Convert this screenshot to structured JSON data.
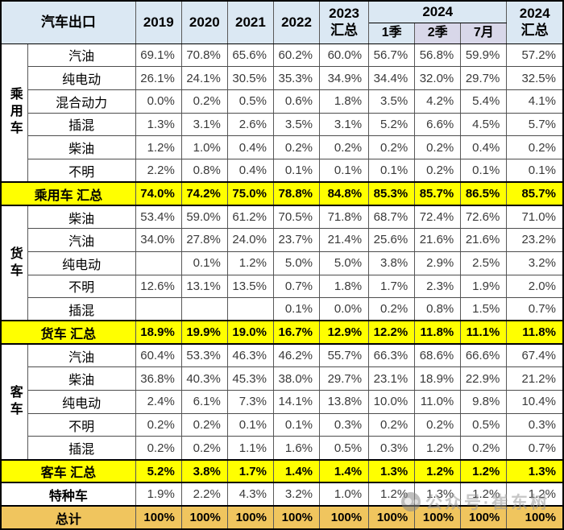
{
  "header": {
    "title": "汽车出口",
    "years": [
      "2019",
      "2020",
      "2021",
      "2022"
    ],
    "col2023": {
      "l1": "2023",
      "l2": "汇总"
    },
    "group2024": "2024",
    "sub2024": [
      "1季",
      "2季",
      "7月"
    ],
    "col2024total": {
      "l1": "2024",
      "l2": "汇总"
    }
  },
  "sections": [
    {
      "group": "乘用车",
      "rows": [
        {
          "label": "汽油",
          "values": [
            "69.1%",
            "70.8%",
            "65.6%",
            "60.2%",
            "60.0%",
            "56.7%",
            "56.8%",
            "59.9%",
            "57.2%"
          ]
        },
        {
          "label": "纯电动",
          "values": [
            "26.1%",
            "24.1%",
            "30.5%",
            "35.3%",
            "34.9%",
            "34.4%",
            "32.0%",
            "29.7%",
            "32.5%"
          ]
        },
        {
          "label": "混合动力",
          "values": [
            "0.0%",
            "0.2%",
            "0.5%",
            "0.6%",
            "1.8%",
            "3.5%",
            "4.2%",
            "5.4%",
            "4.1%"
          ]
        },
        {
          "label": "插混",
          "values": [
            "1.3%",
            "3.1%",
            "2.6%",
            "3.5%",
            "3.1%",
            "5.2%",
            "6.6%",
            "4.5%",
            "5.7%"
          ]
        },
        {
          "label": "柴油",
          "values": [
            "1.2%",
            "1.0%",
            "0.4%",
            "0.2%",
            "0.2%",
            "0.2%",
            "0.2%",
            "0.4%",
            "0.2%"
          ]
        },
        {
          "label": "不明",
          "values": [
            "2.2%",
            "0.8%",
            "0.4%",
            "0.1%",
            "0.1%",
            "0.1%",
            "0.2%",
            "0.1%",
            "0.1%"
          ]
        }
      ],
      "summary": {
        "label": "乘用车 汇总",
        "values": [
          "74.0%",
          "74.2%",
          "75.0%",
          "78.8%",
          "84.8%",
          "85.3%",
          "85.7%",
          "86.5%",
          "85.7%"
        ]
      }
    },
    {
      "group": "货车",
      "rows": [
        {
          "label": "柴油",
          "values": [
            "53.4%",
            "59.0%",
            "61.2%",
            "70.5%",
            "71.8%",
            "68.7%",
            "72.4%",
            "72.6%",
            "71.0%"
          ]
        },
        {
          "label": "汽油",
          "values": [
            "34.0%",
            "27.8%",
            "24.0%",
            "23.7%",
            "21.4%",
            "25.6%",
            "21.6%",
            "21.6%",
            "23.2%"
          ]
        },
        {
          "label": "纯电动",
          "values": [
            "",
            "0.1%",
            "1.2%",
            "5.0%",
            "5.0%",
            "3.8%",
            "2.9%",
            "2.5%",
            "3.2%"
          ]
        },
        {
          "label": "不明",
          "values": [
            "12.6%",
            "13.1%",
            "13.5%",
            "0.7%",
            "1.8%",
            "1.7%",
            "2.3%",
            "1.9%",
            "2.0%"
          ]
        },
        {
          "label": "插混",
          "values": [
            "",
            "",
            "",
            "0.1%",
            "0.0%",
            "0.2%",
            "0.8%",
            "1.5%",
            "0.7%"
          ]
        }
      ],
      "summary": {
        "label": "货车 汇总",
        "values": [
          "18.9%",
          "19.9%",
          "19.0%",
          "16.7%",
          "12.9%",
          "12.2%",
          "11.8%",
          "11.1%",
          "11.8%"
        ]
      }
    },
    {
      "group": "客车",
      "rows": [
        {
          "label": "汽油",
          "values": [
            "60.4%",
            "53.3%",
            "46.3%",
            "46.2%",
            "55.7%",
            "66.3%",
            "68.6%",
            "66.6%",
            "67.4%"
          ]
        },
        {
          "label": "柴油",
          "values": [
            "36.8%",
            "40.3%",
            "45.3%",
            "38.0%",
            "29.7%",
            "23.1%",
            "18.9%",
            "22.9%",
            "21.2%"
          ]
        },
        {
          "label": "纯电动",
          "values": [
            "2.4%",
            "6.1%",
            "7.3%",
            "14.1%",
            "13.8%",
            "10.0%",
            "11.0%",
            "9.8%",
            "10.4%"
          ]
        },
        {
          "label": "不明",
          "values": [
            "0.2%",
            "0.2%",
            "0.1%",
            "0.1%",
            "0.3%",
            "0.2%",
            "0.2%",
            "0.5%",
            "0.3%"
          ]
        },
        {
          "label": "插混",
          "values": [
            "0.2%",
            "0.2%",
            "1.1%",
            "1.6%",
            "0.5%",
            "0.3%",
            "1.2%",
            "0.2%",
            "0.7%"
          ]
        }
      ],
      "summary": {
        "label": "客车 汇总",
        "values": [
          "5.2%",
          "3.8%",
          "1.7%",
          "1.4%",
          "1.4%",
          "1.3%",
          "1.2%",
          "1.2%",
          "1.3%"
        ]
      }
    }
  ],
  "special_row": {
    "label": "特种车",
    "values": [
      "1.9%",
      "2.2%",
      "4.3%",
      "3.2%",
      "1.0%",
      "1.2%",
      "1.3%",
      "1.2%",
      "1.2%"
    ]
  },
  "total_row": {
    "label": "总计",
    "values": [
      "100%",
      "100%",
      "100%",
      "100%",
      "100%",
      "100%",
      "100%",
      "100%",
      "100%"
    ]
  },
  "watermark": {
    "text": "公众号·崔东树"
  },
  "colors": {
    "header_blue": "#dbe8f3",
    "sub_lavender": "#d8d7e9",
    "summary_yellow": "#ffff00",
    "total_gold": "#f0c55e"
  }
}
